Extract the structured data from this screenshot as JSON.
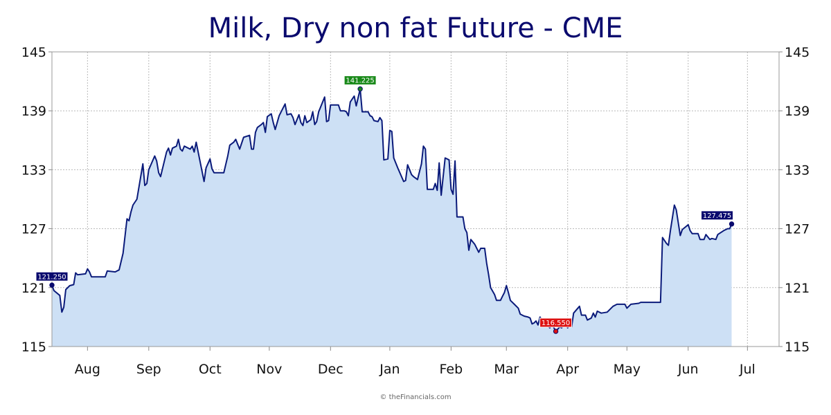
{
  "credit": "© theFinancials.com",
  "colors": {
    "title": "#0a0a6e",
    "line": "#0a1a7a",
    "fill": "#cde0f5",
    "grid": "#b8b8b8",
    "start_label": "#0a0a6e",
    "high_label": "#1a8a1a",
    "low_label": "#dd1111",
    "end_label": "#0a0a6e"
  },
  "chart_data": {
    "type": "area",
    "title": "Milk, Dry non fat Future - CME",
    "xlabel": "",
    "ylabel": "",
    "ylim": [
      115,
      145
    ],
    "yticks": [
      115,
      121,
      127,
      133,
      139,
      145
    ],
    "x_tick_labels": [
      "Aug",
      "Sep",
      "Oct",
      "Nov",
      "Dec",
      "Jan",
      "Feb",
      "Mar",
      "Apr",
      "May",
      "Jun",
      "Jul"
    ],
    "x_tick_days": [
      18,
      49,
      80,
      110,
      141,
      171,
      202,
      230,
      261,
      291,
      322,
      352
    ],
    "x_range_days": [
      0,
      368
    ],
    "grid": true,
    "series": [
      {
        "values_by_day": [
          [
            0,
            121.25
          ],
          [
            1,
            120.7
          ],
          [
            4,
            120.2
          ],
          [
            5,
            118.5
          ],
          [
            6,
            119.0
          ],
          [
            7,
            120.8
          ],
          [
            9,
            121.2
          ],
          [
            11,
            121.3
          ],
          [
            12,
            122.5
          ],
          [
            13,
            122.3
          ],
          [
            17,
            122.4
          ],
          [
            18,
            122.9
          ],
          [
            19,
            122.6
          ],
          [
            20,
            122.1
          ],
          [
            27,
            122.1
          ],
          [
            28,
            122.7
          ],
          [
            32,
            122.6
          ],
          [
            34,
            122.8
          ],
          [
            36,
            124.5
          ],
          [
            38,
            128.0
          ],
          [
            39,
            127.8
          ],
          [
            40,
            128.7
          ],
          [
            41,
            129.4
          ],
          [
            43,
            130.0
          ],
          [
            46,
            133.6
          ],
          [
            47,
            131.4
          ],
          [
            48,
            131.6
          ],
          [
            49,
            133.0
          ],
          [
            52,
            134.4
          ],
          [
            53,
            133.9
          ],
          [
            54,
            132.7
          ],
          [
            55,
            132.3
          ],
          [
            58,
            134.8
          ],
          [
            59,
            135.2
          ],
          [
            60,
            134.5
          ],
          [
            61,
            135.2
          ],
          [
            63,
            135.4
          ],
          [
            64,
            136.1
          ],
          [
            65,
            135.1
          ],
          [
            66,
            134.9
          ],
          [
            67,
            135.4
          ],
          [
            70,
            135.1
          ],
          [
            71,
            135.4
          ],
          [
            72,
            134.8
          ],
          [
            73,
            135.8
          ],
          [
            77,
            131.8
          ],
          [
            78,
            133.2
          ],
          [
            80,
            134.1
          ],
          [
            81,
            133.1
          ],
          [
            82,
            132.7
          ],
          [
            87,
            132.7
          ],
          [
            89,
            134.4
          ],
          [
            90,
            135.5
          ],
          [
            92,
            135.8
          ],
          [
            93,
            136.1
          ],
          [
            94,
            135.6
          ],
          [
            95,
            135.1
          ],
          [
            97,
            136.3
          ],
          [
            100,
            136.5
          ],
          [
            101,
            135.1
          ],
          [
            102,
            135.1
          ],
          [
            103,
            136.8
          ],
          [
            104,
            137.3
          ],
          [
            106,
            137.6
          ],
          [
            107,
            137.8
          ],
          [
            108,
            136.8
          ],
          [
            109,
            138.4
          ],
          [
            111,
            138.7
          ],
          [
            112,
            137.8
          ],
          [
            113,
            137.1
          ],
          [
            115,
            138.5
          ],
          [
            116,
            138.9
          ],
          [
            118,
            139.7
          ],
          [
            119,
            138.6
          ],
          [
            121,
            138.7
          ],
          [
            122,
            138.3
          ],
          [
            123,
            137.6
          ],
          [
            125,
            138.6
          ],
          [
            126,
            137.8
          ],
          [
            127,
            137.5
          ],
          [
            128,
            138.5
          ],
          [
            129,
            137.8
          ],
          [
            131,
            138.1
          ],
          [
            132,
            138.9
          ],
          [
            133,
            137.6
          ],
          [
            134,
            137.9
          ],
          [
            135,
            138.9
          ],
          [
            138,
            140.4
          ],
          [
            139,
            137.9
          ],
          [
            140,
            138.0
          ],
          [
            141,
            139.6
          ],
          [
            145,
            139.6
          ],
          [
            146,
            139.0
          ],
          [
            148,
            139.0
          ],
          [
            149,
            138.9
          ],
          [
            150,
            138.5
          ],
          [
            151,
            139.9
          ],
          [
            153,
            140.5
          ],
          [
            154,
            139.5
          ],
          [
            156,
            141.225
          ],
          [
            157,
            138.9
          ],
          [
            160,
            138.9
          ],
          [
            161,
            138.5
          ],
          [
            162,
            138.4
          ],
          [
            163,
            138.0
          ],
          [
            165,
            137.9
          ],
          [
            166,
            138.3
          ],
          [
            167,
            138.0
          ],
          [
            168,
            134.0
          ],
          [
            170,
            134.1
          ],
          [
            171,
            137.0
          ],
          [
            172,
            136.9
          ],
          [
            173,
            134.2
          ],
          [
            175,
            133.2
          ],
          [
            178,
            131.8
          ],
          [
            179,
            131.9
          ],
          [
            180,
            133.5
          ],
          [
            182,
            132.5
          ],
          [
            183,
            132.3
          ],
          [
            185,
            132.0
          ],
          [
            187,
            133.6
          ],
          [
            188,
            135.4
          ],
          [
            189,
            135.1
          ],
          [
            190,
            131.0
          ],
          [
            193,
            131.0
          ],
          [
            194,
            131.6
          ],
          [
            195,
            130.9
          ],
          [
            196,
            133.7
          ],
          [
            197,
            130.4
          ],
          [
            199,
            134.2
          ],
          [
            201,
            134.0
          ],
          [
            202,
            131.0
          ],
          [
            203,
            130.5
          ],
          [
            204,
            133.9
          ],
          [
            205,
            128.2
          ],
          [
            208,
            128.2
          ],
          [
            209,
            127.0
          ],
          [
            210,
            126.6
          ],
          [
            211,
            124.8
          ],
          [
            212,
            125.9
          ],
          [
            214,
            125.4
          ],
          [
            216,
            124.6
          ],
          [
            217,
            125.0
          ],
          [
            219,
            125.0
          ],
          [
            220,
            123.5
          ],
          [
            221,
            122.3
          ],
          [
            222,
            121.0
          ],
          [
            224,
            120.3
          ],
          [
            225,
            119.7
          ],
          [
            227,
            119.7
          ],
          [
            228,
            120.1
          ],
          [
            229,
            120.5
          ],
          [
            230,
            121.2
          ],
          [
            231,
            120.5
          ],
          [
            232,
            119.7
          ],
          [
            234,
            119.3
          ],
          [
            236,
            118.9
          ],
          [
            237,
            118.3
          ],
          [
            239,
            118.1
          ],
          [
            241,
            118.0
          ],
          [
            242,
            117.9
          ],
          [
            243,
            117.3
          ],
          [
            244,
            117.4
          ],
          [
            245,
            117.6
          ],
          [
            246,
            117.2
          ],
          [
            247,
            118.0
          ],
          [
            249,
            117.4
          ],
          [
            250,
            117.3
          ],
          [
            252,
            116.9
          ],
          [
            253,
            117.3
          ],
          [
            255,
            116.55
          ],
          [
            257,
            117.0
          ],
          [
            258,
            116.9
          ],
          [
            259,
            117.4
          ],
          [
            260,
            117.4
          ],
          [
            261,
            116.9
          ],
          [
            262,
            117.2
          ],
          [
            263,
            117.0
          ],
          [
            264,
            118.4
          ],
          [
            267,
            119.1
          ],
          [
            268,
            118.2
          ],
          [
            270,
            118.2
          ],
          [
            271,
            117.7
          ],
          [
            273,
            117.9
          ],
          [
            274,
            118.4
          ],
          [
            275,
            118.0
          ],
          [
            276,
            118.6
          ],
          [
            278,
            118.4
          ],
          [
            281,
            118.5
          ],
          [
            283,
            118.9
          ],
          [
            284,
            119.1
          ],
          [
            286,
            119.3
          ],
          [
            290,
            119.3
          ],
          [
            291,
            118.9
          ],
          [
            293,
            119.3
          ],
          [
            297,
            119.4
          ],
          [
            298,
            119.5
          ],
          [
            302,
            119.5
          ],
          [
            308,
            119.5
          ],
          [
            309,
            126.1
          ],
          [
            311,
            125.5
          ],
          [
            312,
            125.3
          ],
          [
            313,
            126.8
          ],
          [
            315,
            129.4
          ],
          [
            316,
            128.9
          ],
          [
            318,
            126.3
          ],
          [
            319,
            126.9
          ],
          [
            322,
            127.4
          ],
          [
            323,
            126.8
          ],
          [
            324,
            126.5
          ],
          [
            327,
            126.5
          ],
          [
            328,
            125.9
          ],
          [
            330,
            125.9
          ],
          [
            331,
            126.4
          ],
          [
            333,
            125.9
          ],
          [
            334,
            126.0
          ],
          [
            336,
            125.9
          ],
          [
            337,
            126.4
          ],
          [
            340,
            126.8
          ],
          [
            342,
            127.0
          ],
          [
            343,
            127.0
          ],
          [
            344,
            127.475
          ]
        ]
      }
    ],
    "data_labels": [
      {
        "kind": "start",
        "day": 0,
        "value": 121.25,
        "text": "121.250"
      },
      {
        "kind": "high",
        "day": 156,
        "value": 141.225,
        "text": "141.225"
      },
      {
        "kind": "low",
        "day": 255,
        "value": 116.55,
        "text": "116.550"
      },
      {
        "kind": "end",
        "day": 344,
        "value": 127.475,
        "text": "127.475"
      }
    ]
  }
}
